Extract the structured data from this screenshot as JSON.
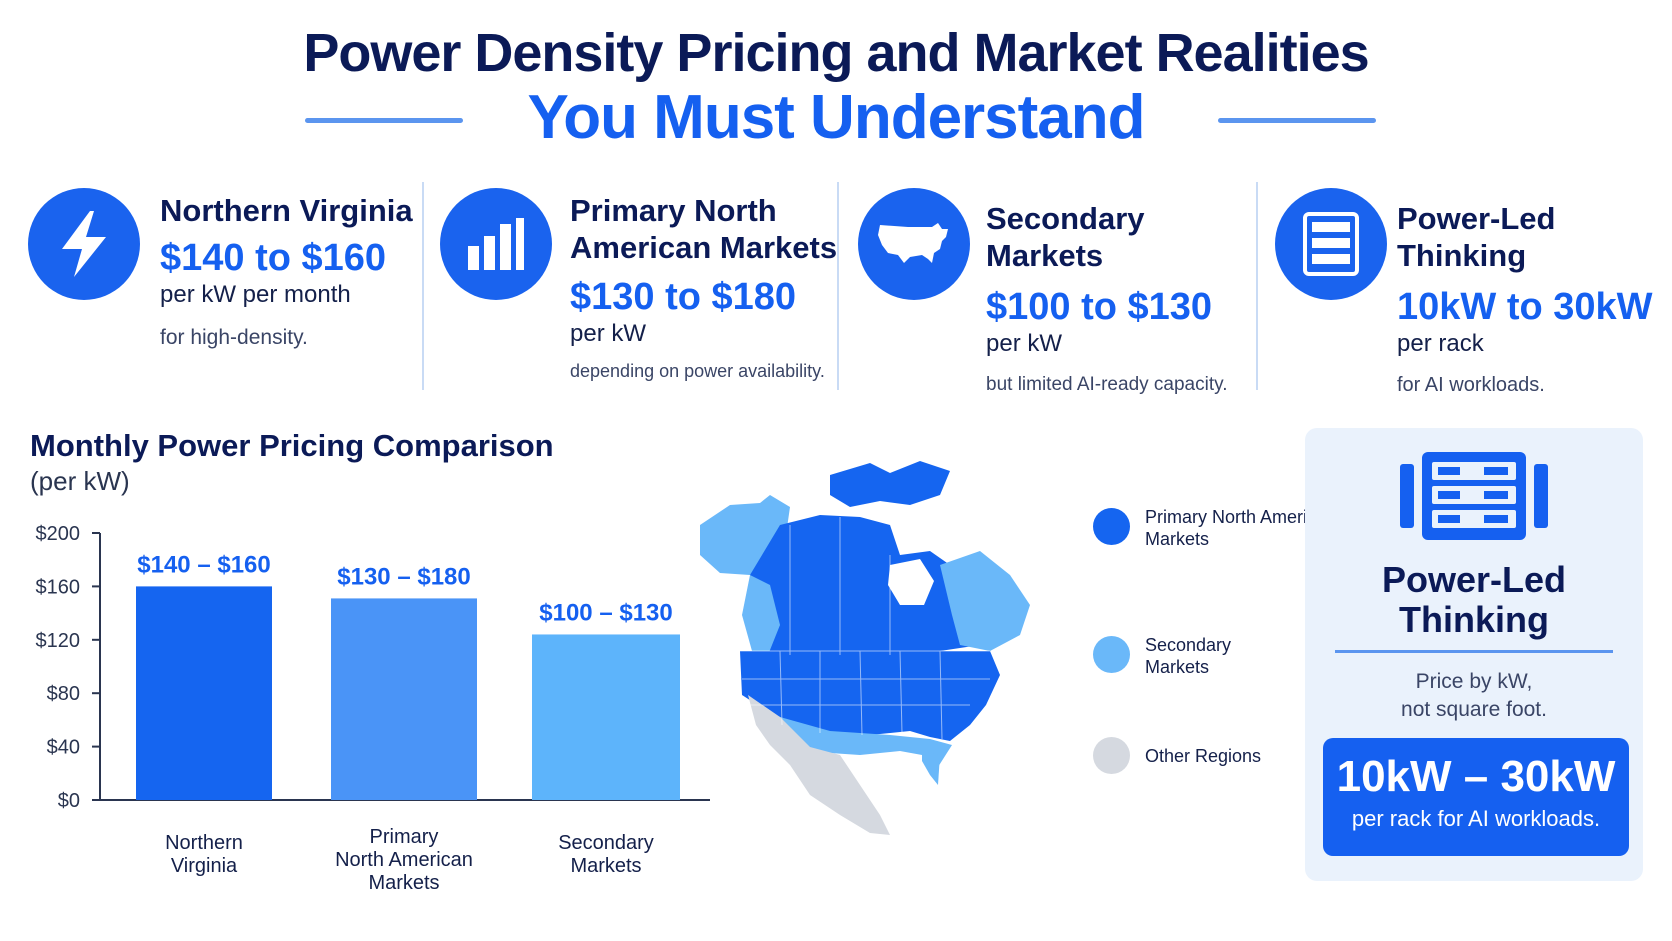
{
  "header": {
    "title_line1": "Power Density Pricing and Market Realities",
    "title_line2": "You Must Understand"
  },
  "cards": [
    {
      "icon": "lightning-bolt-icon",
      "title": "Northern Virginia",
      "value": "$140 to $160",
      "unit": "per kW per month",
      "note": "for high-density."
    },
    {
      "icon": "bar-chart-icon",
      "title": "Primary North American Markets",
      "value": "$130 to $180",
      "unit": "per kW",
      "note": "depending on power availability."
    },
    {
      "icon": "usa-map-icon",
      "title": "Secondary Markets",
      "value": "$100 to $130",
      "unit": "per kW",
      "note": "but limited AI-ready capacity."
    },
    {
      "icon": "server-rack-icon",
      "title": "Power-Led Thinking",
      "value": "10kW to 30kW",
      "unit": "per rack",
      "note": "for AI workloads."
    }
  ],
  "section": {
    "title": "Monthly Power Pricing Comparison",
    "subtitle": "(per kW)"
  },
  "chart_data": {
    "type": "bar",
    "categories": [
      "Northern Virginia",
      "Primary North American Markets",
      "Secondary Markets"
    ],
    "values": [
      160,
      151,
      124
    ],
    "data_labels": [
      "$140 – $160",
      "$130 – $180",
      "$100 – $130"
    ],
    "yticks": [
      "$0",
      "$40",
      "$80",
      "$120",
      "$160",
      "$200"
    ],
    "ylim": [
      0,
      200
    ],
    "colors": [
      "#1565f0",
      "#4a94f7",
      "#5db4fb"
    ],
    "label_color": "#1560f0",
    "title": "",
    "xlabel": "",
    "ylabel": ""
  },
  "legend": [
    {
      "label": "Primary North American Markets",
      "color": "#1565f0"
    },
    {
      "label": "Secondary Markets",
      "color": "#6ab8f9"
    },
    {
      "label": "Other Regions",
      "color": "#d5d9e0"
    }
  ],
  "panel": {
    "icon": "server-rack-icon",
    "title": "Power-Led Thinking",
    "note_line1": "Price by kW,",
    "note_line2": "not square foot.",
    "value": "10kW – 30kW",
    "unit": "per rack for AI workloads."
  },
  "colors": {
    "accent": "#1560f0",
    "navy": "#0b1a57",
    "panel_bg": "#eaf2fc"
  }
}
